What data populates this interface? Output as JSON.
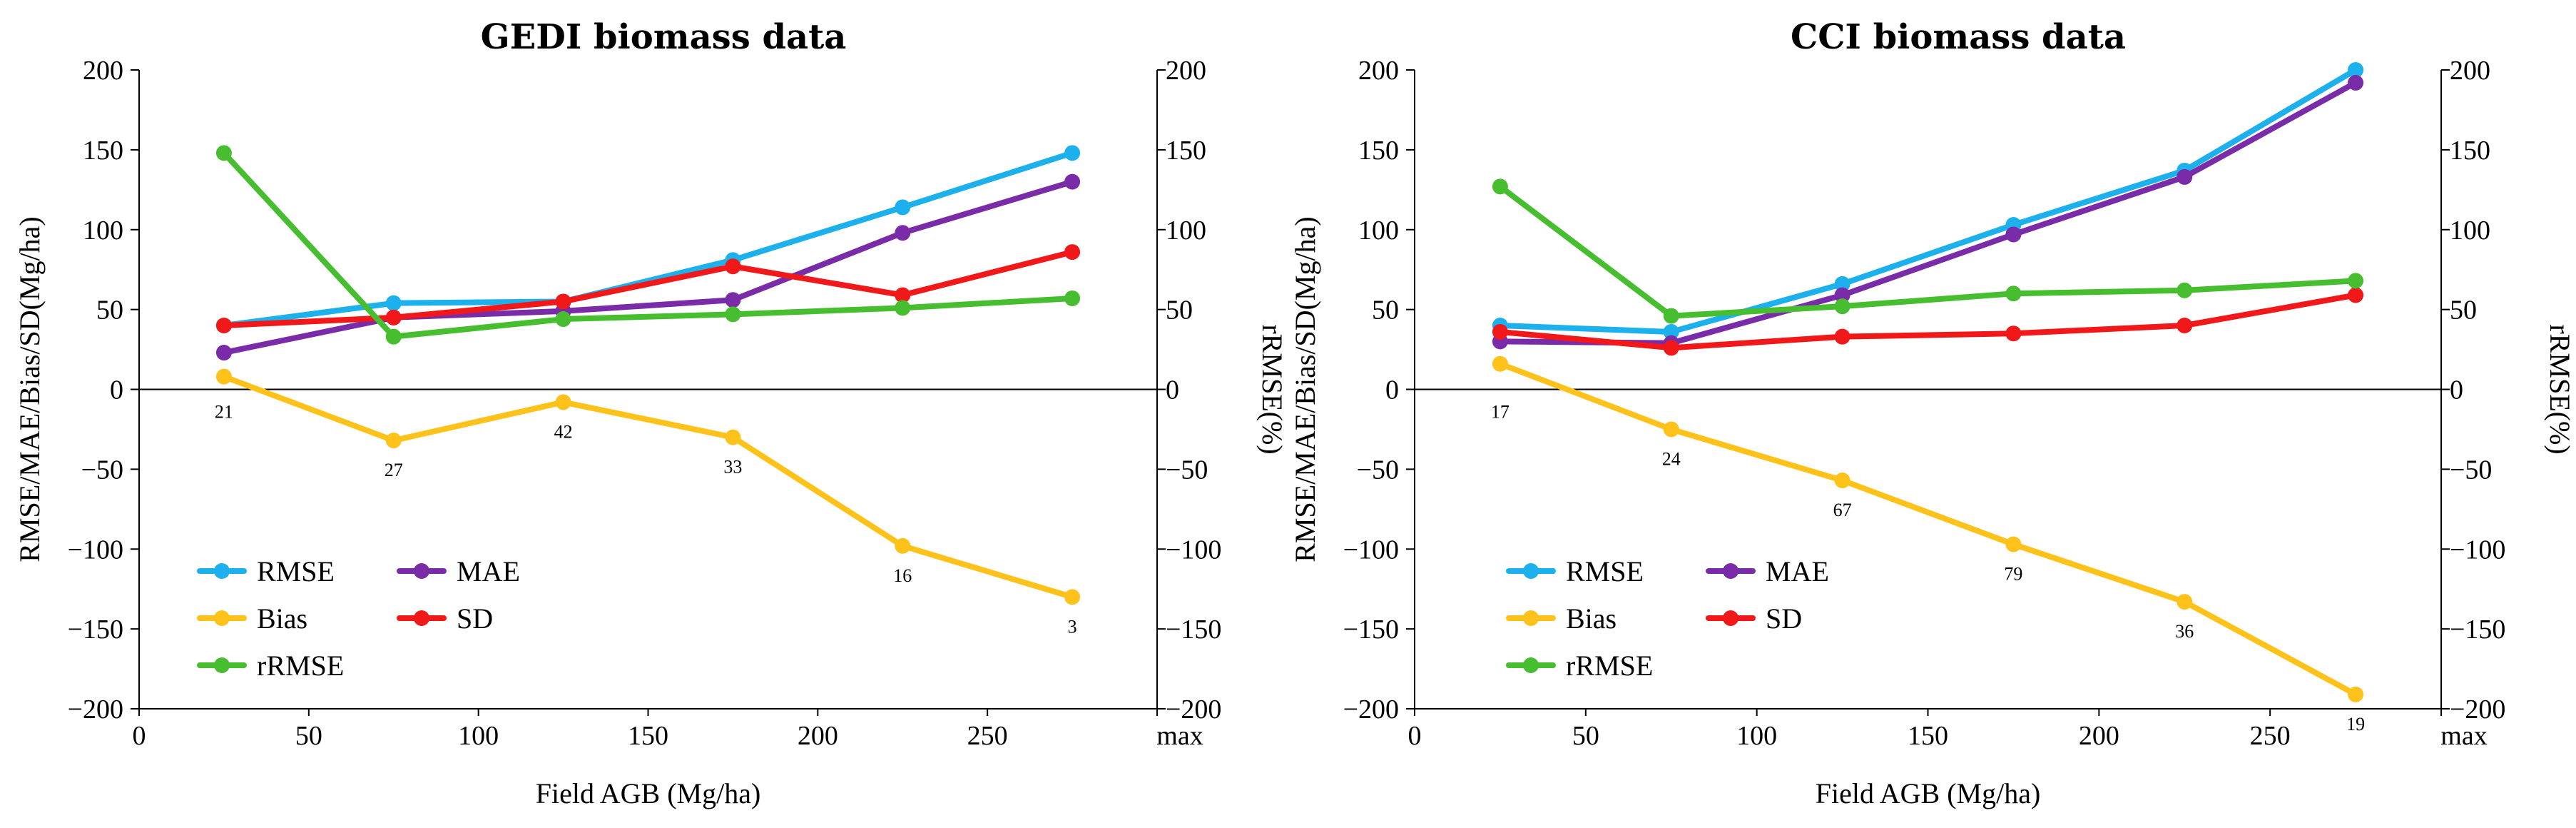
{
  "chart_data": [
    {
      "type": "line",
      "title": "GEDI biomass data",
      "xlabel": "Field AGB (Mg/ha)",
      "ylabel": "RMSE/MAE/Bias/SD(Mg/ha)",
      "y2label": "rRMSE(%)",
      "xlim": [
        0,
        300
      ],
      "ylim": [
        -200,
        200
      ],
      "xticks": [
        "0",
        "50",
        "100",
        "150",
        "200",
        "250",
        "max"
      ],
      "yticks": [
        "200",
        "150",
        "100",
        "50",
        "0",
        "−50",
        "−100",
        "−150",
        "−200"
      ],
      "y2ticks": [
        "200",
        "150",
        "100",
        "50",
        "0",
        "−50",
        "−100",
        "−150",
        "−200"
      ],
      "x": [
        25,
        75,
        125,
        175,
        225,
        275
      ],
      "counts": [
        "21",
        "27",
        "42",
        "33",
        "16",
        "3"
      ],
      "series": [
        {
          "name": "RMSE",
          "color": "#1CB0EC",
          "values": [
            40,
            54,
            55,
            81,
            114,
            148
          ]
        },
        {
          "name": "MAE",
          "color": "#7A2CA8",
          "values": [
            23,
            45,
            49,
            56,
            98,
            130
          ]
        },
        {
          "name": "Bias",
          "color": "#FFC21A",
          "values": [
            8,
            -32,
            -8,
            -30,
            -98,
            -130
          ]
        },
        {
          "name": "SD",
          "color": "#F01818",
          "values": [
            40,
            45,
            55,
            77,
            59,
            86
          ]
        },
        {
          "name": "rRMSE",
          "color": "#47BE2F",
          "values": [
            148,
            33,
            44,
            47,
            51,
            57
          ]
        }
      ]
    },
    {
      "type": "line",
      "title": "CCI biomass data",
      "xlabel": "Field AGB (Mg/ha)",
      "ylabel": "RMSE/MAE/Bias/SD(Mg/ha)",
      "y2label": "rRMSE(%)",
      "xlim": [
        0,
        300
      ],
      "ylim": [
        -200,
        200
      ],
      "xticks": [
        "0",
        "50",
        "100",
        "150",
        "200",
        "250",
        "max"
      ],
      "yticks": [
        "200",
        "150",
        "100",
        "50",
        "0",
        "−50",
        "−100",
        "−150",
        "−200"
      ],
      "y2ticks": [
        "200",
        "150",
        "100",
        "50",
        "0",
        "−50",
        "−100",
        "−150",
        "−200"
      ],
      "x": [
        25,
        75,
        125,
        175,
        225,
        275
      ],
      "counts": [
        "17",
        "24",
        "67",
        "79",
        "36",
        "19"
      ],
      "series": [
        {
          "name": "RMSE",
          "color": "#1CB0EC",
          "values": [
            40,
            36,
            66,
            103,
            137,
            200
          ]
        },
        {
          "name": "MAE",
          "color": "#7A2CA8",
          "values": [
            30,
            29,
            59,
            97,
            133,
            192
          ]
        },
        {
          "name": "Bias",
          "color": "#FFC21A",
          "values": [
            16,
            -25,
            -57,
            -97,
            -133,
            -191
          ]
        },
        {
          "name": "SD",
          "color": "#F01818",
          "values": [
            36,
            26,
            33,
            35,
            40,
            59
          ]
        },
        {
          "name": "rRMSE",
          "color": "#47BE2F",
          "values": [
            127,
            46,
            52,
            60,
            62,
            68
          ]
        }
      ]
    }
  ]
}
